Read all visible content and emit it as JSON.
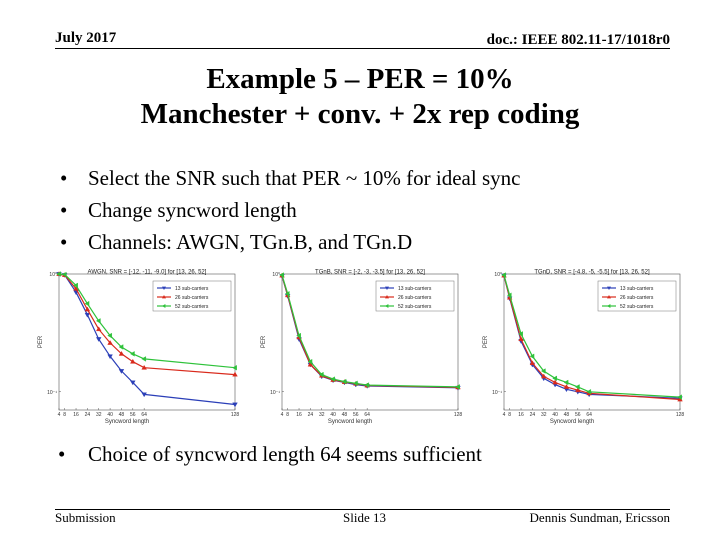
{
  "header": {
    "date": "July 2017",
    "doc": "doc.: IEEE 802.11-17/1018r0"
  },
  "title": {
    "line1": "Example 5 – PER = 10%",
    "line2": "Manchester + conv. + 2x rep coding"
  },
  "bullets": [
    "Select the SNR such that PER ~ 10% for ideal sync",
    "Change syncword length",
    "Channels: AWGN, TGn.B, and TGn.D"
  ],
  "bottom_bullet": "Choice of syncword length 64 seems sufficient",
  "footer": {
    "left": "Submission",
    "center": "Slide 13",
    "right": "Dennis Sundman, Ericsson"
  },
  "chart_data": [
    {
      "type": "line",
      "title": "AWGN, SNR = [-12, -11, -9.0] for [13, 26, 52]",
      "xlabel": "Syncword length",
      "ylabel": "PER",
      "y_scale": "log",
      "ylim": [
        0.07,
        1
      ],
      "xlim": [
        4,
        128
      ],
      "xticks": [
        4,
        8,
        16,
        24,
        32,
        40,
        48,
        56,
        64,
        128
      ],
      "ytick_labels": [
        "10⁰",
        "10⁻¹"
      ],
      "legend_position": "top-right",
      "x": [
        4,
        8,
        16,
        24,
        32,
        40,
        48,
        56,
        64,
        128
      ],
      "series": [
        {
          "name": "13 sub-carriers",
          "color": "#2b3fb8",
          "marker": "triangle-down",
          "values": [
            1.0,
            0.98,
            0.7,
            0.45,
            0.28,
            0.2,
            0.15,
            0.12,
            0.095,
            0.078
          ]
        },
        {
          "name": "26 sub-carriers",
          "color": "#d92a1c",
          "marker": "triangle-up",
          "values": [
            1.0,
            0.98,
            0.75,
            0.5,
            0.34,
            0.26,
            0.21,
            0.18,
            0.16,
            0.14
          ]
        },
        {
          "name": "52 sub-carriers",
          "color": "#2ec23a",
          "marker": "triangle-left",
          "values": [
            1.0,
            0.99,
            0.8,
            0.56,
            0.4,
            0.3,
            0.24,
            0.21,
            0.19,
            0.16
          ]
        }
      ]
    },
    {
      "type": "line",
      "title": "TGnB, SNR = [-2, -3, -3.5] for [13, 26, 52]",
      "xlabel": "Syncword length",
      "ylabel": "PER",
      "y_scale": "log",
      "ylim": [
        0.07,
        1
      ],
      "xlim": [
        4,
        128
      ],
      "xticks": [
        4,
        8,
        16,
        24,
        32,
        40,
        48,
        56,
        64,
        128
      ],
      "ytick_labels": [
        "10⁰",
        "10⁻¹"
      ],
      "legend_position": "top-right",
      "x": [
        4,
        8,
        16,
        24,
        32,
        40,
        48,
        56,
        64,
        128
      ],
      "series": [
        {
          "name": "13 sub-carriers",
          "color": "#2b3fb8",
          "marker": "triangle-down",
          "values": [
            0.96,
            0.65,
            0.28,
            0.17,
            0.135,
            0.125,
            0.12,
            0.115,
            0.112,
            0.108
          ]
        },
        {
          "name": "26 sub-carriers",
          "color": "#d92a1c",
          "marker": "triangle-up",
          "values": [
            0.97,
            0.66,
            0.29,
            0.17,
            0.137,
            0.126,
            0.121,
            0.117,
            0.113,
            0.109
          ]
        },
        {
          "name": "52 sub-carriers",
          "color": "#2ec23a",
          "marker": "triangle-left",
          "values": [
            0.98,
            0.68,
            0.3,
            0.18,
            0.14,
            0.128,
            0.122,
            0.118,
            0.114,
            0.11
          ]
        }
      ]
    },
    {
      "type": "line",
      "title": "TGnD, SNR = [-4.8, -5, -5.5] for [13, 26, 52]",
      "xlabel": "Syncword length",
      "ylabel": "PER",
      "y_scale": "log",
      "ylim": [
        0.07,
        1
      ],
      "xlim": [
        4,
        128
      ],
      "xticks": [
        4,
        8,
        16,
        24,
        32,
        40,
        48,
        56,
        64,
        128
      ],
      "ytick_labels": [
        "10⁰",
        "10⁻¹"
      ],
      "legend_position": "top-right",
      "x": [
        4,
        8,
        16,
        24,
        32,
        40,
        48,
        56,
        64,
        128
      ],
      "series": [
        {
          "name": "13 sub-carriers",
          "color": "#2b3fb8",
          "marker": "triangle-down",
          "values": [
            0.97,
            0.62,
            0.27,
            0.17,
            0.13,
            0.115,
            0.105,
            0.1,
            0.095,
            0.088
          ]
        },
        {
          "name": "26 sub-carriers",
          "color": "#d92a1c",
          "marker": "triangle-up",
          "values": [
            0.97,
            0.63,
            0.28,
            0.175,
            0.135,
            0.12,
            0.11,
            0.103,
            0.097,
            0.086
          ]
        },
        {
          "name": "52 sub-carriers",
          "color": "#2ec23a",
          "marker": "triangle-left",
          "values": [
            0.98,
            0.66,
            0.31,
            0.2,
            0.15,
            0.13,
            0.12,
            0.11,
            0.1,
            0.09
          ]
        }
      ]
    }
  ]
}
